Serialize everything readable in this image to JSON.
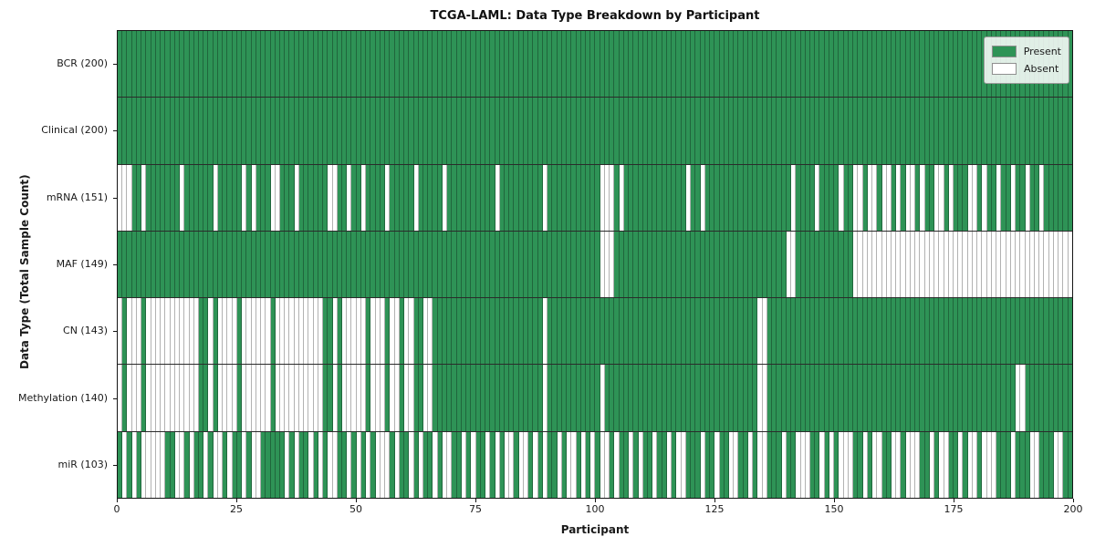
{
  "title": "TCGA-LAML: Data Type Breakdown by Participant",
  "chart_data": {
    "type": "heatmap",
    "title": "TCGA-LAML: Data Type Breakdown by Participant",
    "xlabel": "Participant",
    "ylabel": "Data Type (Total Sample Count)",
    "x_range": [
      0,
      200
    ],
    "x_ticks": [
      0,
      25,
      50,
      75,
      100,
      125,
      150,
      175,
      200
    ],
    "n_participants": 200,
    "encoding": {
      "1": "Present",
      "0": "Absent"
    },
    "legend_position": "upper right",
    "grid": false,
    "colors": {
      "present": "#2e9356",
      "absent": "#ffffff",
      "cell_edge": "rgba(0,0,0,0.30)",
      "frame": "#151515",
      "row_divider": "#2b2b2b"
    },
    "legend": [
      {
        "label": "Present",
        "color": "#2e9356"
      },
      {
        "label": "Absent",
        "color": "#ffffff"
      }
    ],
    "rows": [
      {
        "label": "BCR (200)",
        "data_type": "BCR",
        "total": 200,
        "pattern": "11111111111111111111111111111111111111111111111111111111111111111111111111111111111111111111111111111111111111111111111111111111111111111111111111111111111111111111111111111111111111111111111111111111"
      },
      {
        "label": "Clinical (200)",
        "data_type": "Clinical",
        "total": 200,
        "pattern": "11111111111111111111111111111111111111111111111111111111111111111111111111111111111111111111111111111111111111111111111111111111111111111111111111111111111111111111111111111111111111111111111111111111"
      },
      {
        "label": "mRNA (151)",
        "data_type": "mRNA",
        "total": 151,
        "pattern": "00011011111110111111011111010111001110111111001101101111011111011111011111111110111111111011111111111000101111111111111011011111111111111111101111011110110010010010100101100101110010110110110110111111"
      },
      {
        "label": "MAF (149)",
        "data_type": "MAF",
        "total": 149,
        "pattern": "11111111111111111111111111111111111111111111111111111111111111111111111111111111111111111111111111111000111111111111111111111111111111111111001111111111110000000000000000000000000000000000000000000000"
      },
      {
        "label": "CN (143)",
        "data_type": "CN",
        "total": 143,
        "pattern": "01000100000000000110100001000000100000000001101000001000100100110011111111111111111111111011111111111111111111111111111111111111111111001111111111111111111111111111111111111111111111111111111111111111"
      },
      {
        "label": "Methylation (140)",
        "data_type": "Methylation",
        "total": 140,
        "pattern": "01000100000000000110100001000000100000000001101000001000100100110011111111111111111111111011111111111011111111111111111111111111111111001111111111111111111111111111111111111111111111111111001111111111"
      },
      {
        "label": "miR (103)",
        "data_type": "miR",
        "total": 103,
        "pattern": "10101000001100101101001011010011111010110101001101010100010110101101001101011010100100101011010010101001011010110110100111011011001101001110110001101010001101001100100011010011010010001110111001110011"
      }
    ]
  }
}
